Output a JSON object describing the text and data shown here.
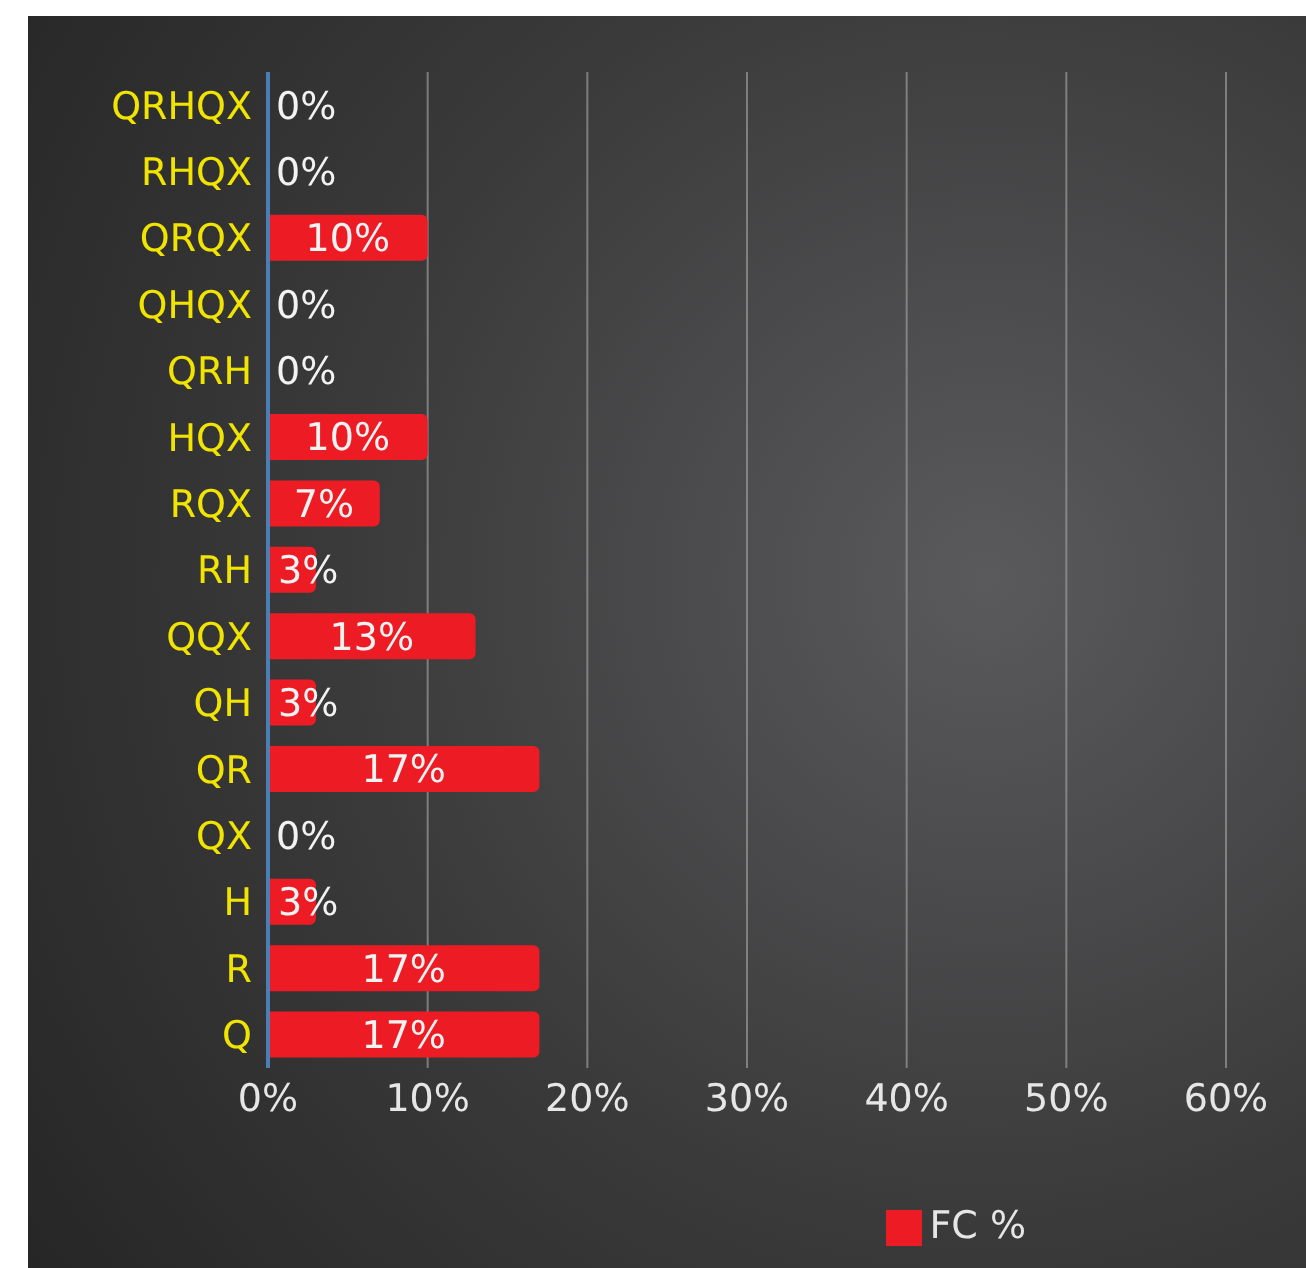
{
  "chart_data": {
    "type": "bar",
    "orientation": "horizontal",
    "categories": [
      "QRHQX",
      "RHQX",
      "QRQX",
      "QHQX",
      "QRH",
      "HQX",
      "RQX",
      "RH",
      "QQX",
      "QH",
      "QR",
      "QX",
      "H",
      "R",
      "Q"
    ],
    "series": [
      {
        "name": "FC %",
        "color": "#ed1c24",
        "values": [
          0,
          0,
          10,
          0,
          0,
          10,
          7,
          3,
          13,
          3,
          17,
          0,
          3,
          17,
          17
        ],
        "value_labels": [
          "0%",
          "0%",
          "10%",
          "0%",
          "0%",
          "10%",
          "7%",
          "3%",
          "13%",
          "3%",
          "17%",
          "0%",
          "3%",
          "17%",
          "17%"
        ]
      }
    ],
    "xlim": [
      0,
      60
    ],
    "xticks": [
      {
        "value": 0,
        "label": "0%"
      },
      {
        "value": 10,
        "label": "10%"
      },
      {
        "value": 20,
        "label": "20%"
      },
      {
        "value": 30,
        "label": "30%"
      },
      {
        "value": 40,
        "label": "40%"
      },
      {
        "value": 50,
        "label": "50%"
      },
      {
        "value": 60,
        "label": "60%"
      }
    ],
    "grid": "x",
    "legend": "bottom right"
  }
}
